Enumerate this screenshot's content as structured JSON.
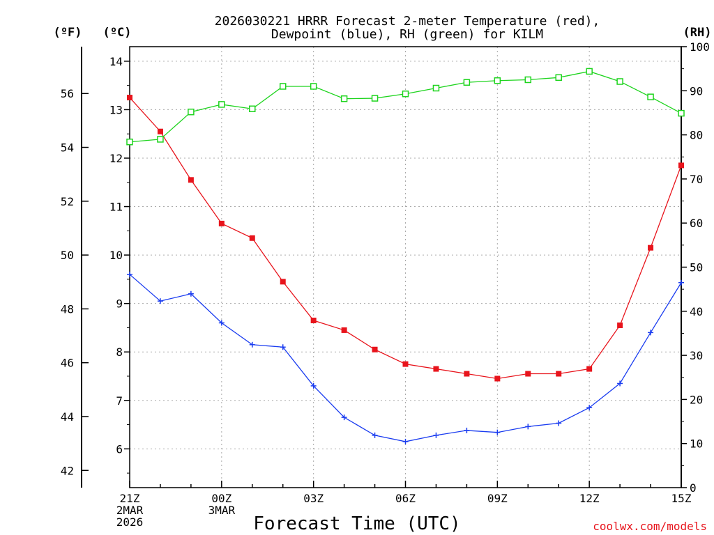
{
  "chart_data": {
    "type": "line",
    "title_lines": [
      "2026030221 HRRR Forecast 2-meter Temperature (red),",
      "Dewpoint (blue), RH (green) for KILM"
    ],
    "units": {
      "fahrenheit": "(ºF)",
      "celsius": "(ºC)",
      "rh": "(RH)"
    },
    "xlabel": "Forecast Time (UTC)",
    "credit": "coolwx.com/models",
    "x": [
      0,
      1,
      2,
      3,
      4,
      5,
      6,
      7,
      8,
      9,
      10,
      11,
      12,
      13,
      14,
      15,
      16,
      17,
      18
    ],
    "x_ticks": [
      {
        "x": 0,
        "lines": [
          "21Z",
          "2MAR",
          "2026"
        ]
      },
      {
        "x": 3,
        "lines": [
          "00Z",
          "3MAR"
        ]
      },
      {
        "x": 6,
        "lines": [
          "03Z"
        ]
      },
      {
        "x": 9,
        "lines": [
          "06Z"
        ]
      },
      {
        "x": 12,
        "lines": [
          "09Z"
        ]
      },
      {
        "x": 15,
        "lines": [
          "12Z"
        ]
      },
      {
        "x": 18,
        "lines": [
          "15Z"
        ]
      }
    ],
    "celsius_axis": {
      "range": [
        5.2,
        14.3
      ],
      "ticks": [
        "6",
        "7",
        "8",
        "9",
        "10",
        "11",
        "12",
        "13",
        "14"
      ]
    },
    "fahrenheit_axis": {
      "range": [
        41.36,
        57.74
      ],
      "ticks": [
        "42",
        "44",
        "46",
        "48",
        "50",
        "52",
        "54",
        "56"
      ]
    },
    "rh_axis": {
      "range": [
        0,
        100
      ],
      "ticks": [
        "0",
        "10",
        "20",
        "30",
        "40",
        "50",
        "60",
        "70",
        "80",
        "90",
        "100"
      ]
    },
    "series": [
      {
        "name": "Temperature",
        "axis": "celsius",
        "color": "#e8141c",
        "marker": "filled-square",
        "values": [
          13.25,
          12.55,
          11.55,
          10.65,
          10.35,
          9.45,
          8.65,
          8.45,
          8.05,
          7.75,
          7.65,
          7.55,
          7.45,
          7.55,
          7.55,
          7.65,
          8.55,
          10.15,
          11.85
        ]
      },
      {
        "name": "Dewpoint",
        "axis": "celsius",
        "color": "#1a3cf0",
        "marker": "plus",
        "values": [
          9.6,
          9.05,
          9.2,
          8.6,
          8.15,
          8.1,
          7.3,
          6.65,
          6.28,
          6.15,
          6.28,
          6.38,
          6.34,
          6.46,
          6.53,
          6.85,
          7.35,
          8.4,
          9.43
        ]
      },
      {
        "name": "RH",
        "axis": "rh",
        "color": "#1ed41e",
        "marker": "open-square",
        "values": [
          78.4,
          79.0,
          85.2,
          86.9,
          85.9,
          91.0,
          91.0,
          88.2,
          88.3,
          89.3,
          90.6,
          91.9,
          92.3,
          92.5,
          93.0,
          94.4,
          92.1,
          88.6,
          84.9
        ]
      }
    ]
  }
}
